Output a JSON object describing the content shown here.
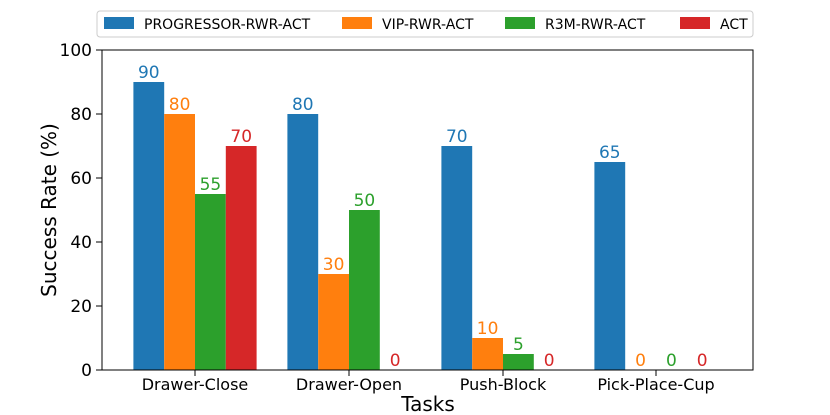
{
  "chart_data": {
    "type": "bar",
    "categories": [
      "Drawer-Close",
      "Drawer-Open",
      "Push-Block",
      "Pick-Place-Cup"
    ],
    "series": [
      {
        "name": "PROGRESSOR-RWR-ACT",
        "color": "#1f77b4",
        "values": [
          90,
          80,
          70,
          65
        ]
      },
      {
        "name": "VIP-RWR-ACT",
        "color": "#ff7f0e",
        "values": [
          80,
          30,
          10,
          0
        ]
      },
      {
        "name": "R3M-RWR-ACT",
        "color": "#2ca02c",
        "values": [
          55,
          50,
          5,
          0
        ]
      },
      {
        "name": "ACT",
        "color": "#d62728",
        "values": [
          70,
          0,
          0,
          0
        ]
      }
    ],
    "xlabel": "Tasks",
    "ylabel": "Success Rate (%)",
    "ylim": [
      0,
      100
    ],
    "yticks": [
      0,
      20,
      40,
      60,
      80,
      100
    ],
    "legend_position": "top",
    "grid": false
  }
}
